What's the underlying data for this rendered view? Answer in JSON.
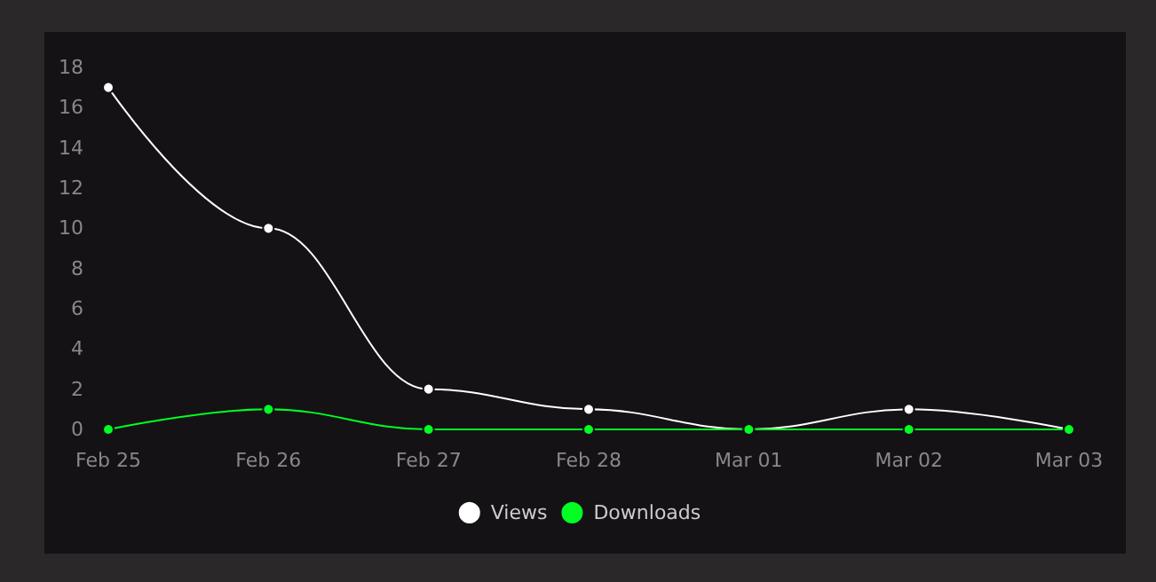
{
  "chart_data": {
    "type": "line",
    "categories": [
      "Feb 25",
      "Feb 26",
      "Feb 27",
      "Feb 28",
      "Mar 01",
      "Mar 02",
      "Mar 03"
    ],
    "series": [
      {
        "name": "Views",
        "color": "#ffffff",
        "values": [
          17,
          10,
          2,
          1,
          0,
          1,
          0
        ]
      },
      {
        "name": "Downloads",
        "color": "#00ff22",
        "values": [
          0,
          1,
          0,
          0,
          0,
          0,
          0
        ]
      }
    ],
    "ylim": [
      0,
      18
    ],
    "yticks": [
      0,
      2,
      4,
      6,
      8,
      10,
      12,
      14,
      16,
      18
    ],
    "grid": false,
    "legend": "bottom",
    "marker": "circle",
    "line_style": "solid"
  }
}
